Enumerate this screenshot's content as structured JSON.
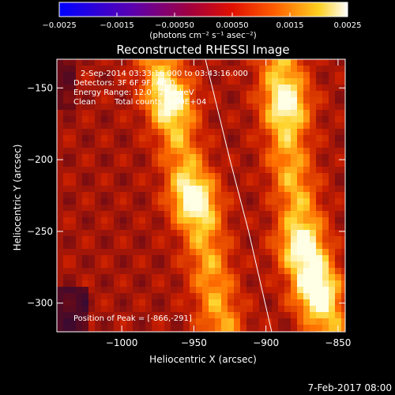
{
  "chart_data": {
    "type": "heatmap",
    "title": "Reconstructed RHESSI Image",
    "xlabel": "Heliocentric X (arcsec)",
    "ylabel": "Heliocentric Y (arcsec)",
    "xlim": [
      -1045,
      -845
    ],
    "ylim": [
      -320,
      -130
    ],
    "xticks": [
      -1000,
      -950,
      -900,
      -850
    ],
    "xtick_labels": [
      "−1000",
      "−950",
      "−900",
      "−850"
    ],
    "yticks": [
      -150,
      -200,
      -250,
      -300
    ],
    "ytick_labels": [
      "−150",
      "−200",
      "−250",
      "−300"
    ],
    "colorbar": {
      "range": [
        -0.0025,
        0.0025
      ],
      "ticks": [
        -0.0025,
        -0.0015,
        -0.0005,
        0.0005,
        0.0015,
        0.0025
      ],
      "tick_labels": [
        "−0.0025",
        "−0.0015",
        "−0.00050",
        "0.00050",
        "0.0015",
        "0.0025"
      ],
      "unit_label": "(photons cm⁻² s⁻¹ asec⁻²)",
      "colormap": "blue-purple-red-orange-yellow-white"
    },
    "annotations": {
      "time_range": "2-Sep-2014 03:33:16.000 to 03:43:16.000",
      "detectors": "Detectors: 3F 6F 9F, Att 0",
      "energy": "Energy Range: 12.0 - 25.0 keV",
      "method": "Clean",
      "counts": "Total counts: 1.60E+04",
      "peak": "Position of Peak = [-866,-291]"
    },
    "limb_curve": [
      [
        -942,
        -130
      ],
      [
        -925,
        -200
      ],
      [
        -912,
        -250
      ],
      [
        -896,
        -320
      ]
    ],
    "sources": [
      {
        "x": -966,
        "y": -158,
        "intensity": 0.85
      },
      {
        "x": -950,
        "y": -228,
        "intensity": 0.95
      },
      {
        "x": -885,
        "y": -160,
        "intensity": 0.75
      },
      {
        "x": -878,
        "y": -262,
        "intensity": 0.85
      },
      {
        "x": -866,
        "y": -291,
        "intensity": 1.0
      }
    ],
    "ridges": [
      {
        "points": [
          [
            -975,
            -130
          ],
          [
            -960,
            -190
          ],
          [
            -945,
            -245
          ],
          [
            -930,
            -320
          ]
        ],
        "intensity": 0.8
      },
      {
        "points": [
          [
            -890,
            -130
          ],
          [
            -884,
            -200
          ],
          [
            -872,
            -260
          ],
          [
            -856,
            -320
          ]
        ],
        "intensity": 0.85
      }
    ]
  },
  "footer": {
    "timestamp": "7-Feb-2017 08:00"
  }
}
